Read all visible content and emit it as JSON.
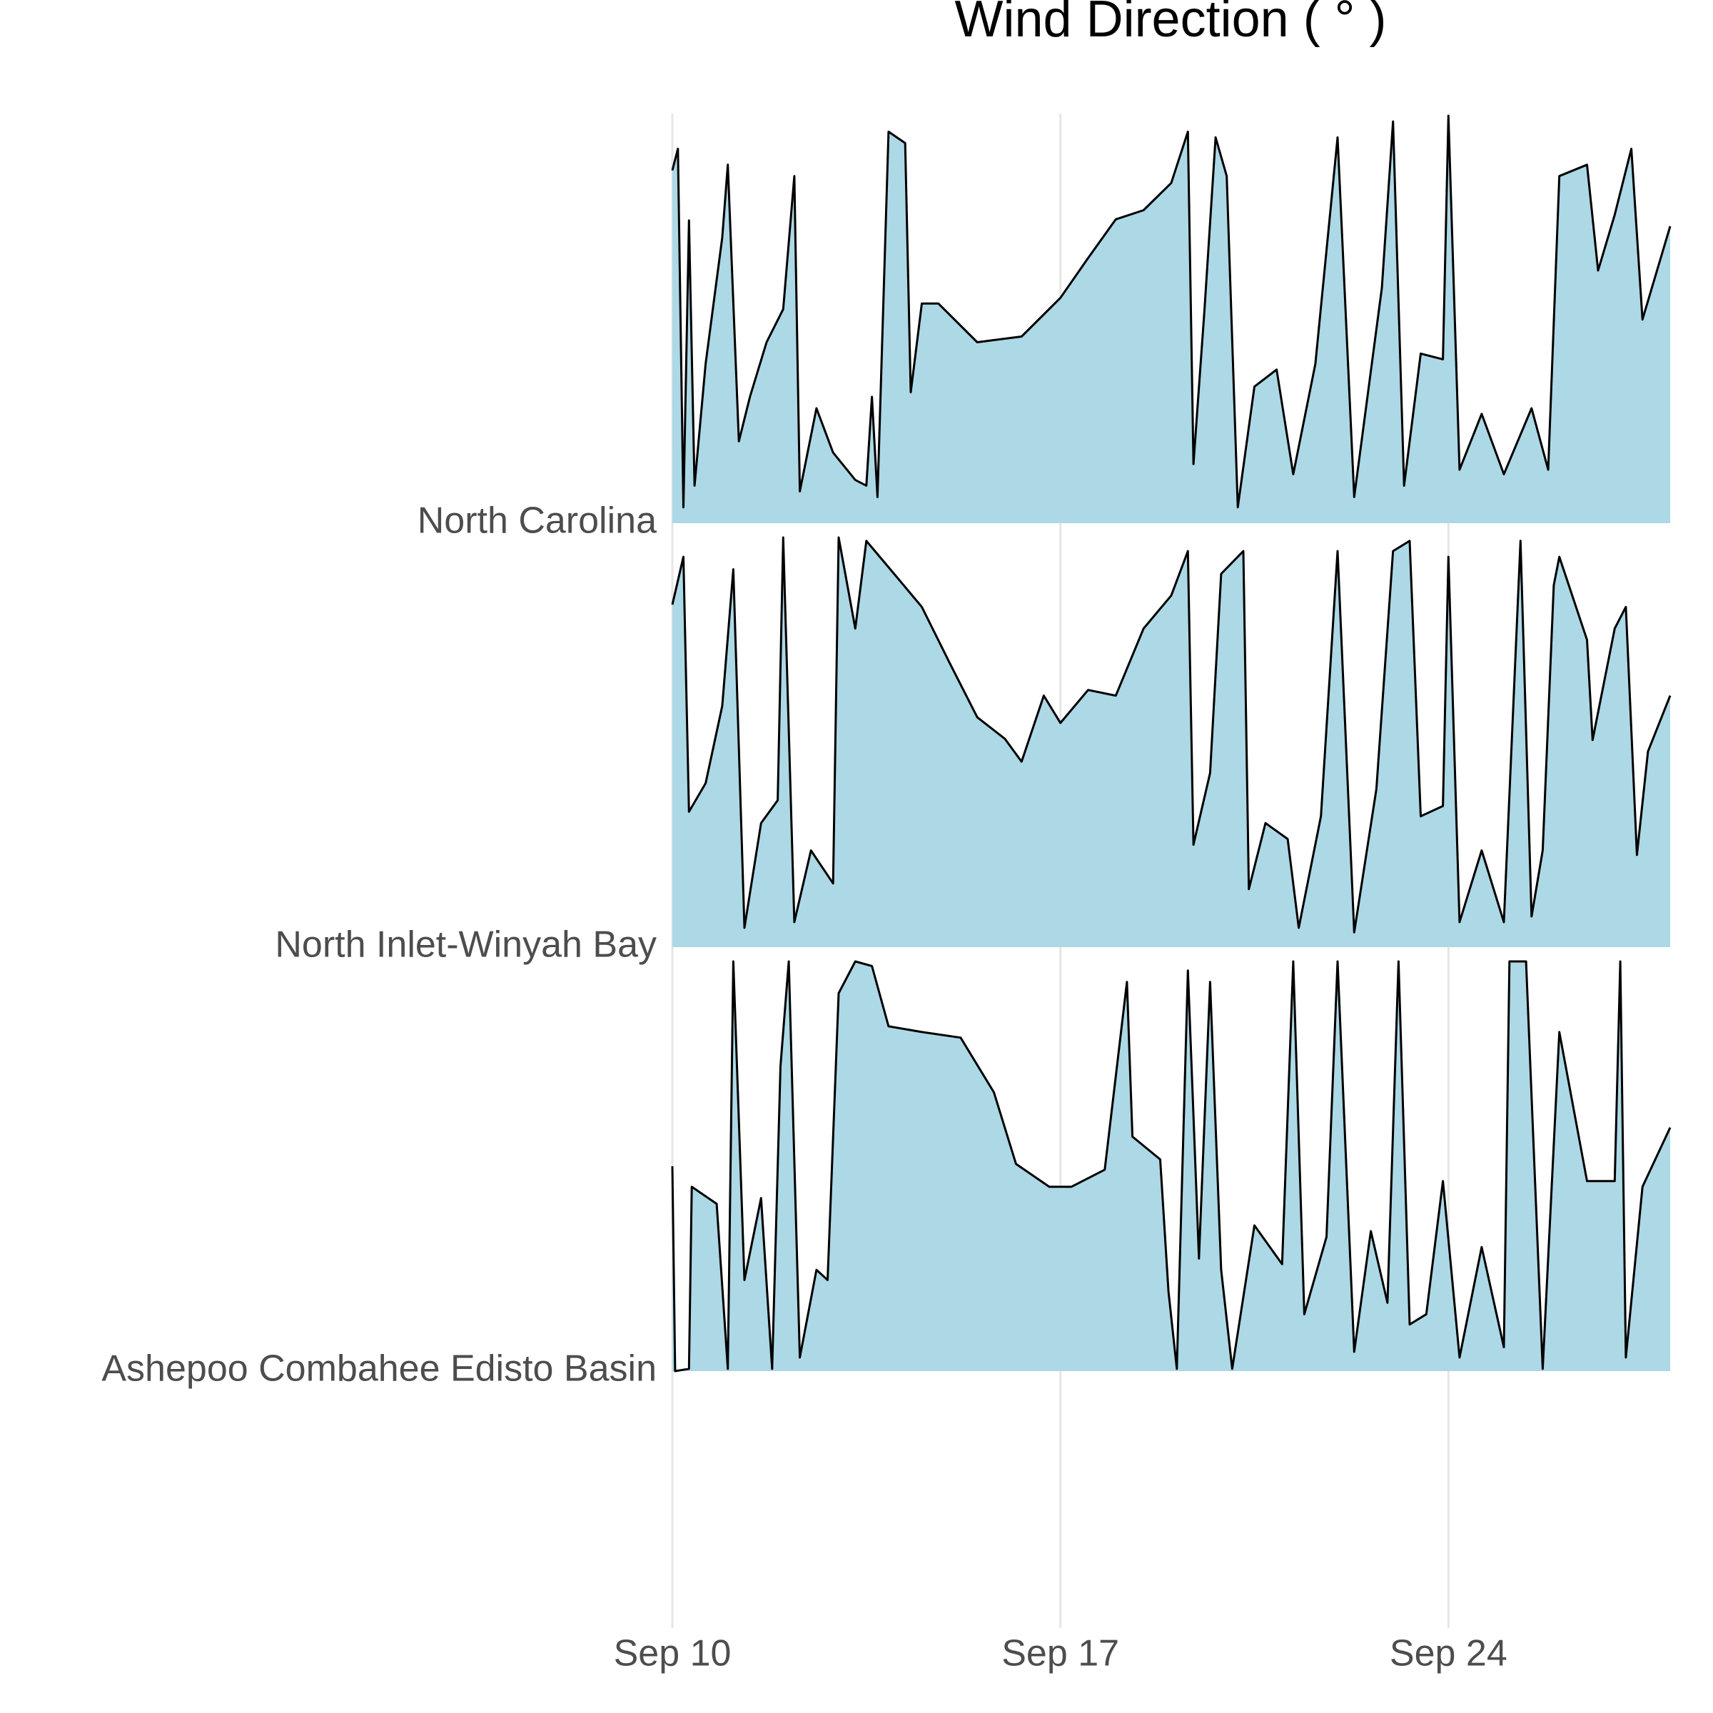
{
  "chart_data": {
    "type": "ridgeline",
    "title": "Wind Direction ( ° )",
    "xlim": [
      0,
      18
    ],
    "xticks": [
      {
        "value": 0,
        "label": "Sep 10"
      },
      {
        "value": 7,
        "label": "Sep 17"
      },
      {
        "value": 14,
        "label": "Sep 24"
      }
    ],
    "ylim": [
      0,
      360
    ],
    "grid": true,
    "fill_color": "#add8e6",
    "line_color": "#000000",
    "series": [
      {
        "name": "North Carolina",
        "x": [
          0,
          0.1,
          0.2,
          0.3,
          0.4,
          0.6,
          0.9,
          1.0,
          1.2,
          1.4,
          1.7,
          2.0,
          2.2,
          2.3,
          2.6,
          2.9,
          3.3,
          3.5,
          3.6,
          3.7,
          3.9,
          4.2,
          4.3,
          4.5,
          4.8,
          5.5,
          6.3,
          7.0,
          7.5,
          8.0,
          8.5,
          9.0,
          9.3,
          9.4,
          9.6,
          9.8,
          10.0,
          10.2,
          10.5,
          10.9,
          11.2,
          11.6,
          12.0,
          12.3,
          12.8,
          13.0,
          13.2,
          13.5,
          13.9,
          14.0,
          14.2,
          14.6,
          15.0,
          15.5,
          15.8,
          16.0,
          16.5,
          16.7,
          17.0,
          17.3,
          17.5,
          18.0
        ],
        "values": [
          310,
          329,
          14,
          266,
          33,
          140,
          251,
          315,
          72,
          111,
          159,
          188,
          305,
          28,
          101,
          62,
          38,
          33,
          111,
          23,
          344,
          334,
          115,
          193,
          193,
          159,
          164,
          198,
          233,
          267,
          275,
          299,
          344,
          52,
          188,
          339,
          305,
          14,
          120,
          135,
          43,
          140,
          339,
          23,
          207,
          353,
          33,
          149,
          144,
          358,
          47,
          96,
          43,
          101,
          47,
          305,
          315,
          222,
          271,
          329,
          179,
          261
        ]
      },
      {
        "name": "North Inlet-Winyah Bay",
        "x": [
          0,
          0.2,
          0.3,
          0.6,
          0.9,
          1.1,
          1.3,
          1.6,
          1.9,
          2.0,
          2.2,
          2.5,
          2.9,
          3.0,
          3.3,
          3.5,
          4.0,
          4.5,
          5.0,
          5.5,
          6.0,
          6.3,
          6.7,
          7.0,
          7.5,
          8.0,
          8.5,
          9.0,
          9.3,
          9.4,
          9.7,
          9.9,
          10.3,
          10.4,
          10.7,
          11.1,
          11.3,
          11.7,
          12.0,
          12.3,
          12.7,
          13.0,
          13.3,
          13.5,
          13.9,
          14.0,
          14.2,
          14.6,
          15.0,
          15.3,
          15.5,
          15.7,
          15.9,
          16.0,
          16.5,
          16.6,
          17.0,
          17.2,
          17.4,
          17.6,
          18.0
        ],
        "values": [
          301,
          343,
          119,
          144,
          212,
          332,
          17,
          109,
          129,
          360,
          22,
          85,
          56,
          360,
          280,
          357,
          328,
          299,
          250,
          202,
          183,
          163,
          221,
          197,
          226,
          221,
          280,
          309,
          348,
          90,
          153,
          328,
          348,
          51,
          109,
          95,
          17,
          115,
          348,
          13,
          139,
          348,
          357,
          115,
          124,
          343,
          22,
          85,
          22,
          357,
          27,
          85,
          318,
          343,
          270,
          182,
          280,
          299,
          81,
          172,
          221
        ]
      },
      {
        "name": "Ashepoo Combahee Edisto Basin",
        "x": [
          0,
          0.05,
          0.3,
          0.35,
          0.8,
          1.0,
          1.1,
          1.3,
          1.6,
          1.8,
          1.95,
          2.1,
          2.3,
          2.6,
          2.8,
          3.0,
          3.3,
          3.6,
          3.9,
          4.5,
          5.2,
          5.8,
          6.2,
          6.8,
          7.2,
          7.8,
          8.2,
          8.3,
          8.8,
          8.95,
          9.1,
          9.3,
          9.5,
          9.7,
          9.9,
          10.1,
          10.5,
          11.0,
          11.2,
          11.4,
          11.8,
          12.0,
          12.3,
          12.6,
          12.9,
          13.1,
          13.3,
          13.6,
          13.9,
          14.2,
          14.6,
          15.0,
          15.1,
          15.4,
          15.7,
          16.0,
          16.5,
          17.0,
          17.1,
          17.2,
          17.5,
          18.0
        ],
        "values": [
          180,
          0,
          2,
          162,
          147,
          2,
          360,
          80,
          152,
          2,
          268,
          360,
          12,
          89,
          80,
          332,
          360,
          356,
          303,
          298,
          293,
          245,
          182,
          162,
          162,
          177,
          342,
          206,
          186,
          70,
          2,
          352,
          99,
          342,
          89,
          2,
          128,
          94,
          360,
          50,
          118,
          360,
          17,
          123,
          60,
          360,
          41,
          50,
          167,
          12,
          109,
          21,
          360,
          360,
          2,
          298,
          167,
          167,
          360,
          12,
          162,
          214
        ]
      }
    ]
  }
}
